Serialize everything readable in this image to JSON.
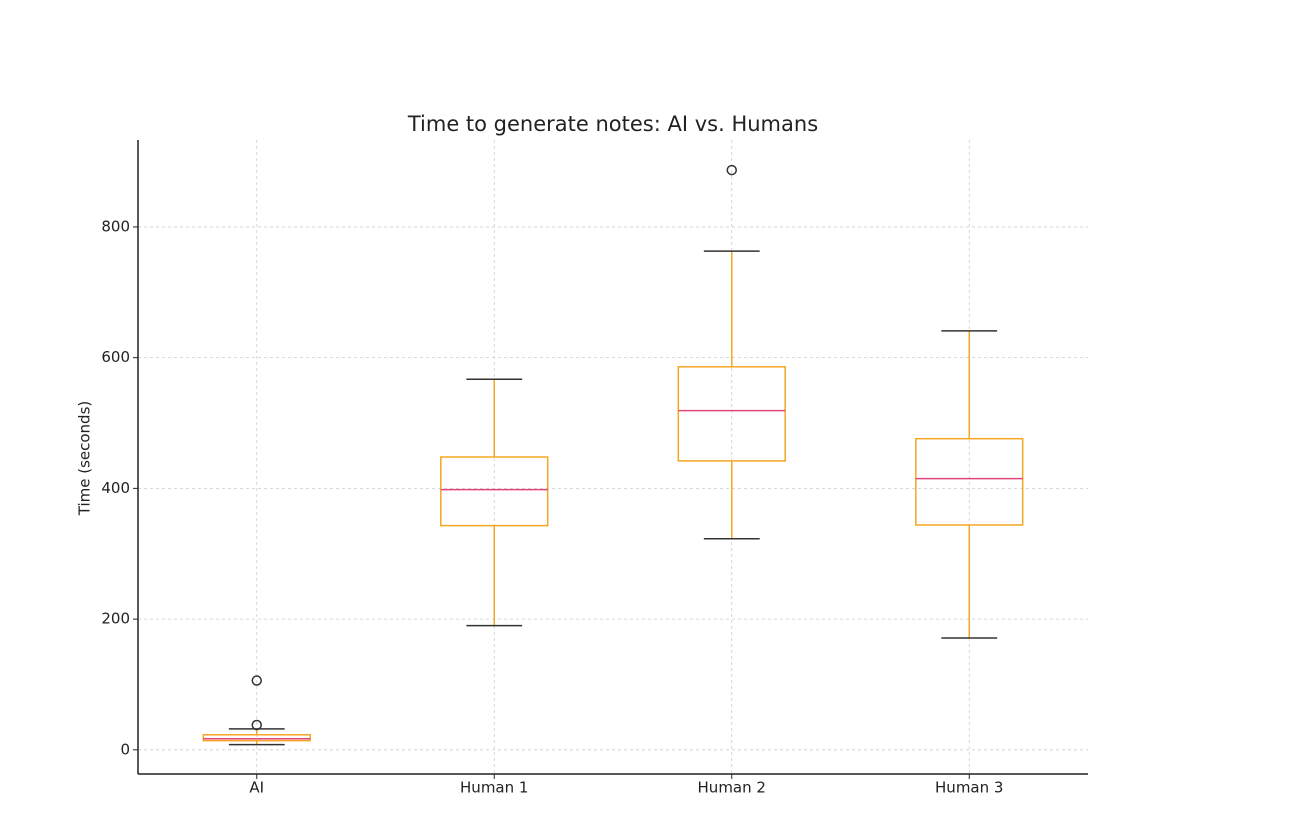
{
  "chart_data": {
    "type": "box",
    "title": "Time to generate notes: AI vs. Humans",
    "y_label": "Time (seconds)",
    "categories": [
      "AI",
      "Human 1",
      "Human 2",
      "Human 3"
    ],
    "boxes": [
      {
        "whislo": 8,
        "q1": 14,
        "med": 17,
        "q3": 23,
        "whishi": 32,
        "fliers": [
          38,
          106
        ]
      },
      {
        "whislo": 190,
        "q1": 343,
        "med": 398,
        "q3": 448,
        "whishi": 567,
        "fliers": []
      },
      {
        "whislo": 323,
        "q1": 442,
        "med": 519,
        "q3": 586,
        "whishi": 763,
        "fliers": [
          887
        ]
      },
      {
        "whislo": 171,
        "q1": 344,
        "med": 415,
        "q3": 476,
        "whishi": 641,
        "fliers": []
      }
    ],
    "box_color": "#f5a623",
    "median_color": "#e0457b",
    "cap_color": "#333333",
    "ylim": [
      -37,
      933
    ],
    "yticks": [
      0,
      200,
      400,
      600,
      800
    ],
    "grid": true
  }
}
